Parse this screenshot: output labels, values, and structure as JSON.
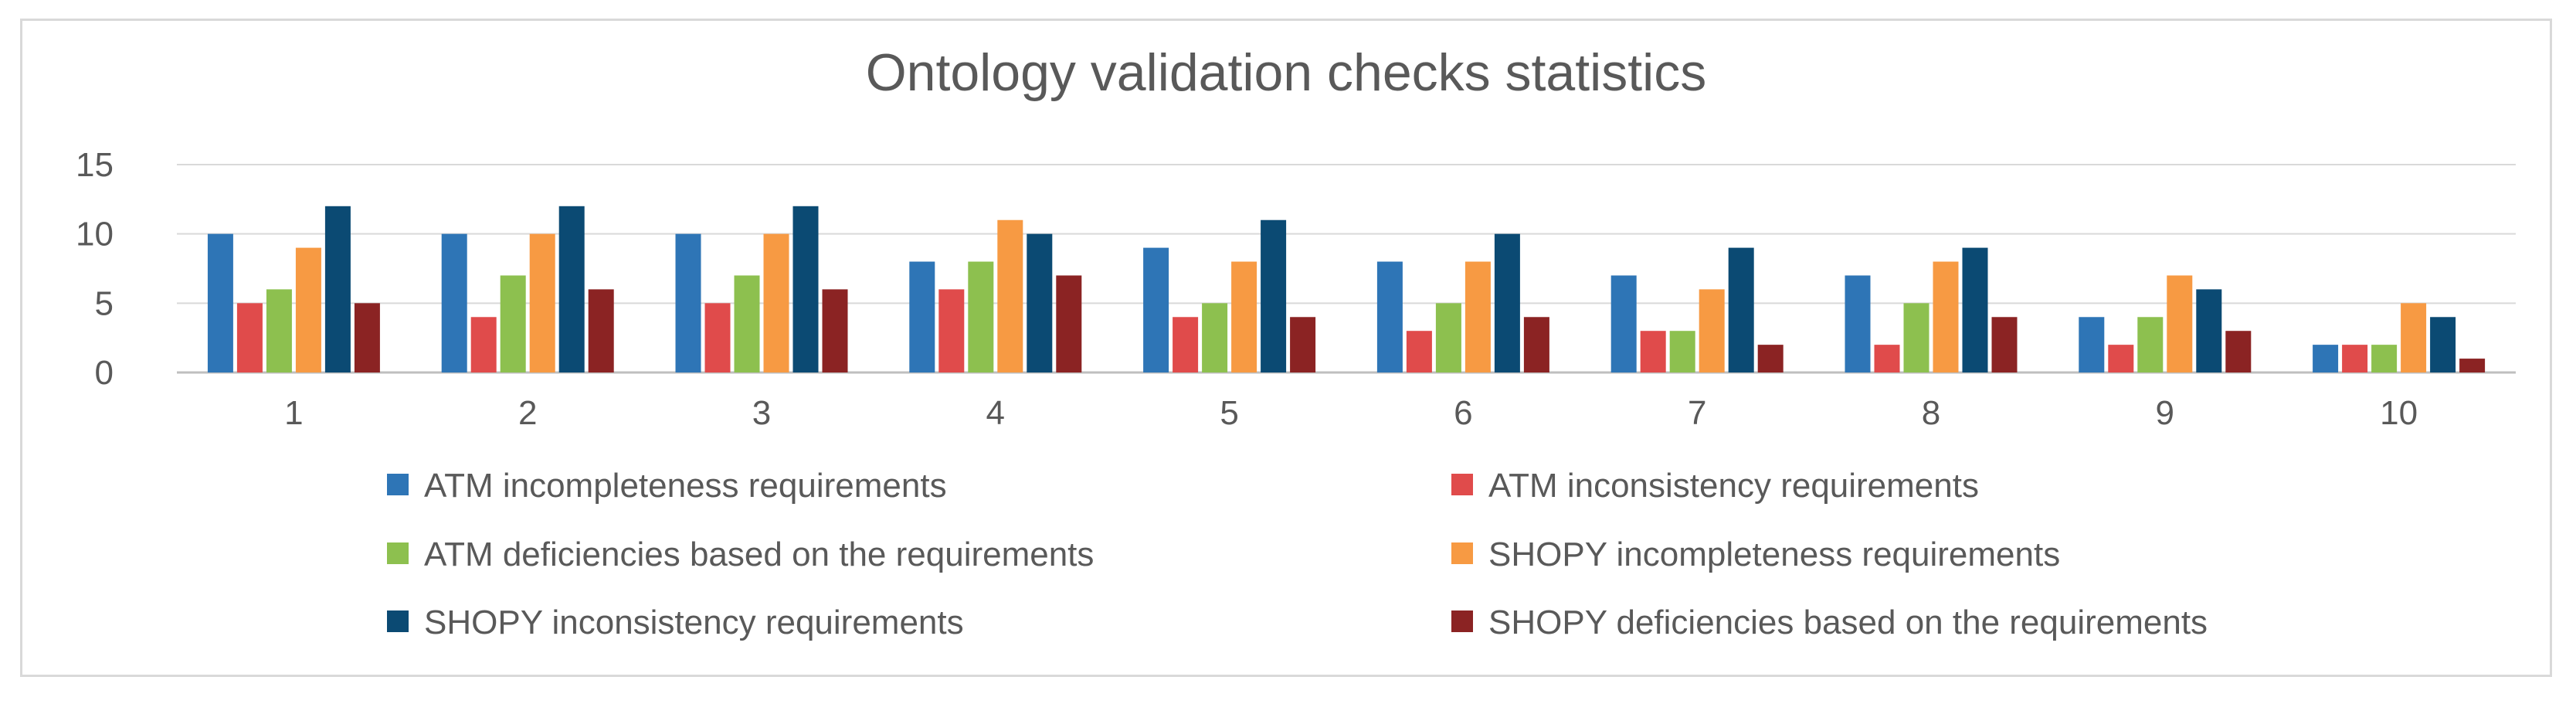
{
  "chart_data": {
    "type": "bar",
    "title": "Ontology validation checks statistics",
    "xlabel": "",
    "ylabel": "",
    "categories": [
      "1",
      "2",
      "3",
      "4",
      "5",
      "6",
      "7",
      "8",
      "9",
      "10"
    ],
    "ylim": [
      0,
      15
    ],
    "yticks": [
      "0",
      "5",
      "10",
      "15"
    ],
    "grid": true,
    "legend_position": "bottom",
    "series": [
      {
        "name": "ATM incompleteness requirements",
        "color": "#2e75b6",
        "values": [
          10,
          10,
          10,
          8,
          9,
          8,
          7,
          7,
          4,
          2
        ]
      },
      {
        "name": "ATM inconsistency requirements",
        "color": "#e04b4b",
        "values": [
          5,
          4,
          5,
          6,
          4,
          3,
          3,
          2,
          2,
          2
        ]
      },
      {
        "name": "ATM deficiencies based on the requirements",
        "color": "#8dc04f",
        "values": [
          6,
          7,
          7,
          8,
          5,
          5,
          3,
          5,
          4,
          2
        ]
      },
      {
        "name": "SHOPY incompleteness requirements",
        "color": "#f79a43",
        "values": [
          9,
          10,
          10,
          11,
          8,
          8,
          6,
          8,
          7,
          5
        ]
      },
      {
        "name": "SHOPY inconsistency requirements",
        "color": "#0b4a73",
        "values": [
          12,
          12,
          12,
          10,
          11,
          10,
          9,
          9,
          6,
          4
        ]
      },
      {
        "name": "SHOPY deficiencies based on the requirements",
        "color": "#8b2323",
        "values": [
          5,
          6,
          6,
          7,
          4,
          4,
          2,
          4,
          3,
          1
        ]
      }
    ]
  }
}
